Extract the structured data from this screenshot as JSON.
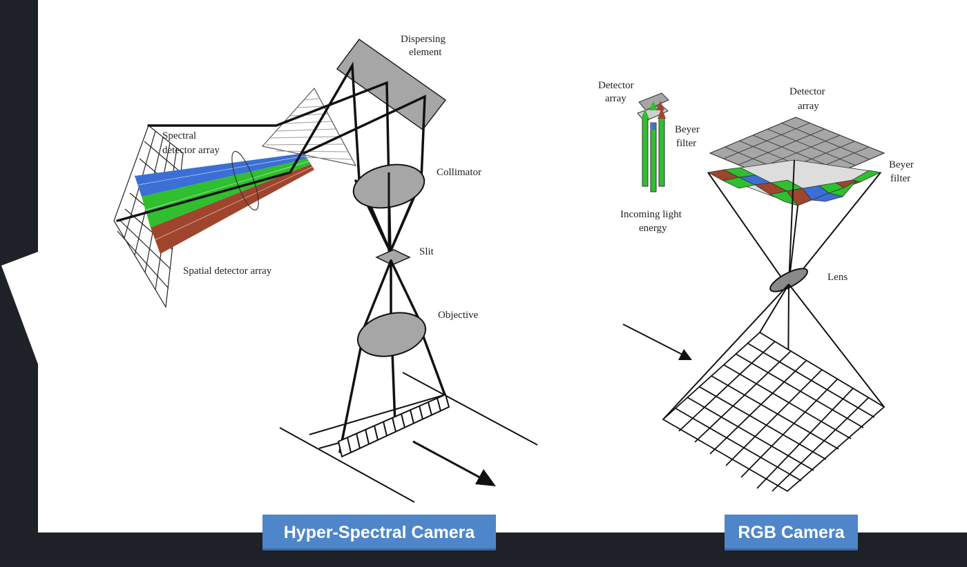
{
  "colors": {
    "background_dark": "#1e2127",
    "canvas": "#ffffff",
    "caption_bg": "#4f86c9",
    "spectrum_blue": "#3b6fd6",
    "spectrum_green": "#2fbf2f",
    "spectrum_red": "#a0452d",
    "component_gray": "#a6a6a6"
  },
  "hyperspectral": {
    "caption": "Hyper-Spectral Camera",
    "labels": {
      "dispersing_1": "Dispersing",
      "dispersing_2": "element",
      "spectral_1": "Spectral",
      "spectral_2": "detector array",
      "collimator": "Collimator",
      "slit": "Slit",
      "spatial": "Spatial detector array",
      "objective": "Objective"
    }
  },
  "rgb": {
    "caption": "RGB Camera",
    "labels": {
      "small_detector_1": "Detector",
      "small_detector_2": "array",
      "small_beyer_1": "Beyer",
      "small_beyer_2": "filter",
      "incoming_1": "Incoming light",
      "incoming_2": "energy",
      "detector_1": "Detector",
      "detector_2": "array",
      "beyer_1": "Beyer",
      "beyer_2": "filter",
      "lens": "Lens"
    }
  }
}
